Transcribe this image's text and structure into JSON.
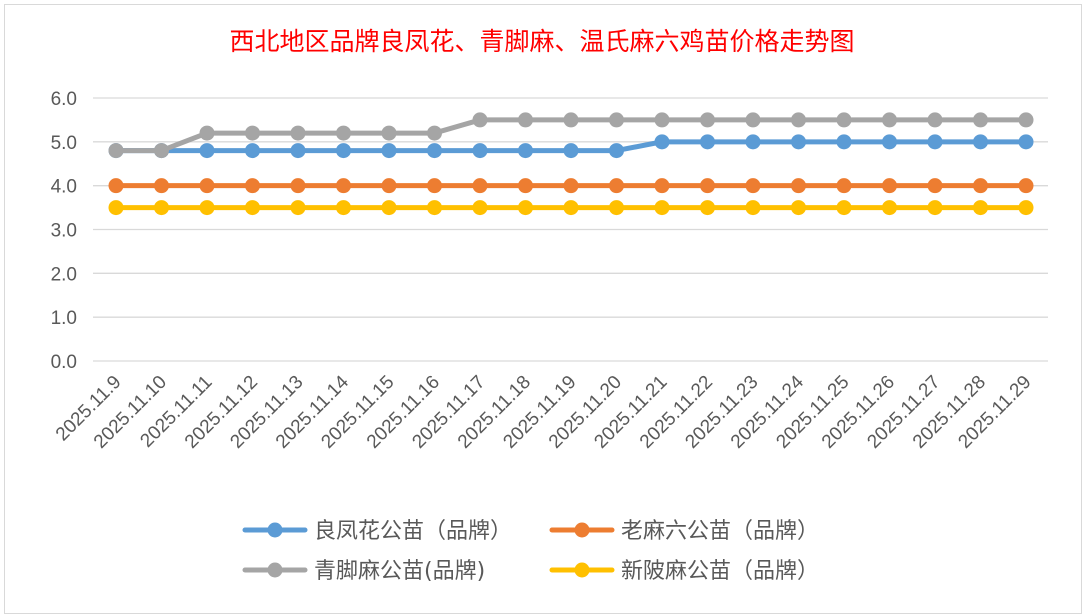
{
  "chart_data": {
    "type": "line",
    "title": "西北地区品牌良凤花、青脚麻、温氏麻六鸡苗价格走势图",
    "title_color": "#ff0000",
    "categories": [
      "2025.11.9",
      "2025.11.10",
      "2025.11.11",
      "2025.11.12",
      "2025.11.13",
      "2025.11.14",
      "2025.11.15",
      "2025.11.16",
      "2025.11.17",
      "2025.11.18",
      "2025.11.19",
      "2025.11.20",
      "2025.11.21",
      "2025.11.22",
      "2025.11.23",
      "2025.11.24",
      "2025.11.25",
      "2025.11.26",
      "2025.11.27",
      "2025.11.28",
      "2025.11.29"
    ],
    "ylim": [
      0,
      6
    ],
    "yticks": [
      "0.0",
      "1.0",
      "2.0",
      "3.0",
      "4.0",
      "5.0",
      "6.0"
    ],
    "grid": true,
    "legend_placement": "bottom",
    "series": [
      {
        "name": "良凤花公苗（品牌）",
        "color": "#5b9bd5",
        "values": [
          4.8,
          4.8,
          4.8,
          4.8,
          4.8,
          4.8,
          4.8,
          4.8,
          4.8,
          4.8,
          4.8,
          4.8,
          5.0,
          5.0,
          5.0,
          5.0,
          5.0,
          5.0,
          5.0,
          5.0,
          5.0
        ]
      },
      {
        "name": "老麻六公苗（品牌）",
        "color": "#ed7d31",
        "values": [
          4.0,
          4.0,
          4.0,
          4.0,
          4.0,
          4.0,
          4.0,
          4.0,
          4.0,
          4.0,
          4.0,
          4.0,
          4.0,
          4.0,
          4.0,
          4.0,
          4.0,
          4.0,
          4.0,
          4.0,
          4.0
        ]
      },
      {
        "name": "青脚麻公苗(品牌)",
        "color": "#a5a5a5",
        "values": [
          4.8,
          4.8,
          5.2,
          5.2,
          5.2,
          5.2,
          5.2,
          5.2,
          5.5,
          5.5,
          5.5,
          5.5,
          5.5,
          5.5,
          5.5,
          5.5,
          5.5,
          5.5,
          5.5,
          5.5,
          5.5
        ]
      },
      {
        "name": "新陂麻公苗（品牌）",
        "color": "#ffc000",
        "values": [
          3.5,
          3.5,
          3.5,
          3.5,
          3.5,
          3.5,
          3.5,
          3.5,
          3.5,
          3.5,
          3.5,
          3.5,
          3.5,
          3.5,
          3.5,
          3.5,
          3.5,
          3.5,
          3.5,
          3.5,
          3.5
        ]
      }
    ]
  }
}
